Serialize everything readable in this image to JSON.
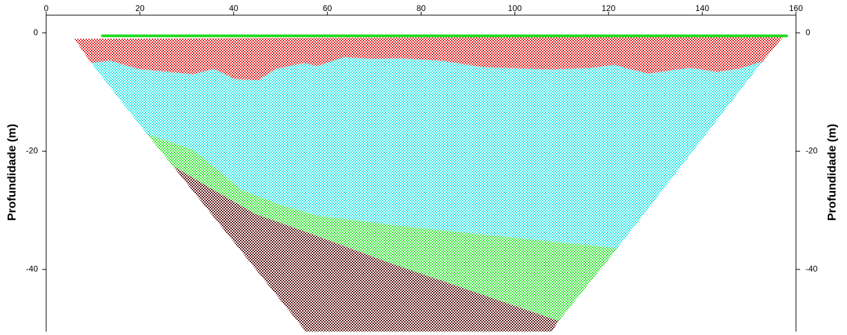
{
  "chart_data": {
    "type": "section",
    "y_label": "Profundidade (m)",
    "xlim": [
      0,
      160
    ],
    "xticks": [
      0,
      20,
      40,
      60,
      80,
      100,
      120,
      140,
      160
    ],
    "ylim": [
      -50.5,
      3
    ],
    "yticks": [
      0,
      -20,
      -40
    ],
    "layers": [
      {
        "color": "#2fe6e6",
        "x": [
          9.6,
          13.7,
          19.6,
          31.4,
          35.8,
          40.2,
          45.3,
          49.0,
          54.9,
          57.8,
          63.7,
          69.6,
          75.5,
          84.3,
          93.2,
          107.9,
          116.7,
          121.1,
          128.5,
          137.3,
          143.2,
          147.6,
          152.8,
          121.9,
          78.5,
          57.8,
          49.0,
          41.7,
          31.4,
          21.5
        ],
        "y": [
          -5.1,
          -4.7,
          -6.1,
          -7.0,
          -6.1,
          -7.8,
          -8.0,
          -6.1,
          -5.1,
          -5.6,
          -4.1,
          -4.4,
          -4.3,
          -4.7,
          -5.8,
          -6.2,
          -5.9,
          -5.4,
          -6.9,
          -5.9,
          -6.6,
          -6.1,
          -4.9,
          -36.4,
          -32.9,
          -30.9,
          -28.8,
          -26.5,
          -19.8,
          -17.1
        ]
      },
      {
        "color": "#33e633",
        "x": [
          21.5,
          31.4,
          41.7,
          49.0,
          57.8,
          78.5,
          121.9,
          109.4,
          72.6,
          54.9,
          44.6,
          34.3,
          26.9
        ],
        "y": [
          -17.1,
          -19.8,
          -26.5,
          -28.8,
          -30.9,
          -32.9,
          -36.4,
          -48.7,
          -38.7,
          -33.5,
          -30.6,
          -25.9,
          -22.4
        ]
      },
      {
        "color": "#5c1414",
        "x": [
          26.9,
          34.3,
          44.6,
          54.9,
          72.6,
          109.4,
          107.9,
          55.4
        ],
        "y": [
          -22.4,
          -25.9,
          -30.6,
          -33.5,
          -38.7,
          -48.7,
          -50.5,
          -50.5
        ]
      },
      {
        "color": "#e02222",
        "x": [
          6,
          157.5,
          152.8,
          147.6,
          143.2,
          137.3,
          128.5,
          121.1,
          116.7,
          107.9,
          93.2,
          84.3,
          75.5,
          69.6,
          63.7,
          57.8,
          54.9,
          49.0,
          45.3,
          40.2,
          35.8,
          31.4,
          19.6,
          13.7,
          9.6
        ],
        "y": [
          -1,
          -0.5,
          -4.9,
          -6.1,
          -6.6,
          -5.9,
          -6.9,
          -5.4,
          -5.9,
          -6.2,
          -5.8,
          -4.7,
          -4.3,
          -4.4,
          -4.1,
          -5.6,
          -5.1,
          -6.1,
          -8.0,
          -7.8,
          -6.1,
          -7.0,
          -6.1,
          -4.7,
          -5.1
        ]
      }
    ],
    "surface": {
      "color": "#22dd22",
      "x": [
        12,
        158
      ],
      "y": [
        -0.5,
        -0.5
      ]
    }
  }
}
